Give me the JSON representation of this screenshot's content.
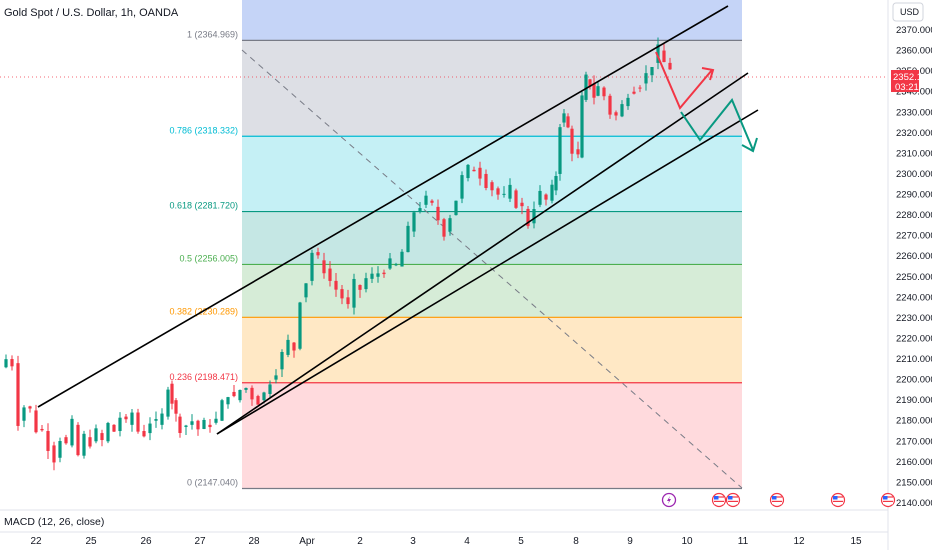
{
  "header": {
    "title": "Gold Spot / U.S. Dollar, 1h, OANDA"
  },
  "currency": "USD",
  "indicator_label": "MACD (12, 26, close)",
  "current_price": {
    "value": "2352.185",
    "countdown": "03:21",
    "color": "#f23645"
  },
  "colors": {
    "bullish": "#089981",
    "bearish": "#f23645",
    "channel": "#000000",
    "arrow_up": "#f23645",
    "arrow_down": "#089981"
  },
  "chart_data": {
    "type": "candlestick",
    "title": "Gold Spot / U.S. Dollar, 1h, OANDA",
    "ylim": [
      2137,
      2382
    ],
    "y_ticks": [
      2370,
      2360,
      2350,
      2340,
      2330,
      2320,
      2310,
      2300,
      2290,
      2280,
      2270,
      2260,
      2250,
      2240,
      2230,
      2220,
      2210,
      2200,
      2190,
      2180,
      2170,
      2160,
      2150,
      2140
    ],
    "x_ticks": [
      "22",
      "25",
      "26",
      "27",
      "28",
      "Apr",
      "2",
      "3",
      "4",
      "5",
      "8",
      "9",
      "10",
      "11",
      "12",
      "15"
    ],
    "fibonacci": {
      "levels": [
        {
          "label": "1 (2364.969)",
          "price": 2364.969,
          "color": "#787b86",
          "fill": "#d1d4dc"
        },
        {
          "label": "0.786 (2318.332)",
          "price": 2318.332,
          "color": "#00bcd4",
          "fill": "#b2ebf2"
        },
        {
          "label": "0.618 (2281.720)",
          "price": 2281.72,
          "color": "#089981",
          "fill": "#b2dfdb"
        },
        {
          "label": "0.5 (2256.005)",
          "price": 2256.005,
          "color": "#4caf50",
          "fill": "#c8e6c9"
        },
        {
          "label": "0.382 (2230.289)",
          "price": 2230.289,
          "color": "#ff9800",
          "fill": "#ffe0b2"
        },
        {
          "label": "0.236 (2198.471)",
          "price": 2198.471,
          "color": "#f23645",
          "fill": "#ffcdd2"
        },
        {
          "label": "0 (2147.040)",
          "price": 2147.04,
          "color": "#787b86",
          "fill": "#ffcdd2"
        }
      ],
      "top_zone_fill": "#c5d4f7"
    },
    "price_path": [
      [
        0,
        2206
      ],
      [
        6,
        2210
      ],
      [
        12,
        2208
      ],
      [
        18,
        2180
      ],
      [
        24,
        2187
      ],
      [
        30,
        2185
      ],
      [
        36,
        2176
      ],
      [
        42,
        2175
      ],
      [
        48,
        2168
      ],
      [
        54,
        2162
      ],
      [
        60,
        2172
      ],
      [
        66,
        2168
      ],
      [
        72,
        2178
      ],
      [
        78,
        2163
      ],
      [
        84,
        2172
      ],
      [
        90,
        2170
      ],
      [
        96,
        2174
      ],
      [
        102,
        2170
      ],
      [
        108,
        2178
      ],
      [
        114,
        2175
      ],
      [
        120,
        2182
      ],
      [
        126,
        2178
      ],
      [
        132,
        2184
      ],
      [
        138,
        2175
      ],
      [
        144,
        2174
      ],
      [
        150,
        2180
      ],
      [
        156,
        2178
      ],
      [
        162,
        2182
      ],
      [
        168,
        2198
      ],
      [
        172,
        2190
      ],
      [
        176,
        2182
      ],
      [
        180,
        2177
      ],
      [
        186,
        2178
      ],
      [
        192,
        2180
      ],
      [
        198,
        2176
      ],
      [
        204,
        2178
      ],
      [
        210,
        2179
      ],
      [
        216,
        2180
      ],
      [
        222,
        2188
      ],
      [
        228,
        2194
      ],
      [
        234,
        2190
      ],
      [
        240,
        2195
      ],
      [
        246,
        2196
      ],
      [
        252,
        2192
      ],
      [
        258,
        2190
      ],
      [
        264,
        2193
      ],
      [
        270,
        2200
      ],
      [
        276,
        2205
      ],
      [
        282,
        2212
      ],
      [
        288,
        2218
      ],
      [
        294,
        2215
      ],
      [
        300,
        2240
      ],
      [
        306,
        2248
      ],
      [
        312,
        2262
      ],
      [
        318,
        2258
      ],
      [
        324,
        2254
      ],
      [
        330,
        2248
      ],
      [
        336,
        2244
      ],
      [
        342,
        2240
      ],
      [
        348,
        2235
      ],
      [
        354,
        2246
      ],
      [
        360,
        2244
      ],
      [
        366,
        2249
      ],
      [
        372,
        2250
      ],
      [
        378,
        2252
      ],
      [
        384,
        2254
      ],
      [
        390,
        2256
      ],
      [
        396,
        2255
      ],
      [
        402,
        2262
      ],
      [
        408,
        2272
      ],
      [
        414,
        2282
      ],
      [
        420,
        2285
      ],
      [
        426,
        2287
      ],
      [
        432,
        2284
      ],
      [
        438,
        2278
      ],
      [
        444,
        2272
      ],
      [
        450,
        2280
      ],
      [
        456,
        2288
      ],
      [
        462,
        2298
      ],
      [
        468,
        2302
      ],
      [
        474,
        2303
      ],
      [
        480,
        2300
      ],
      [
        486,
        2296
      ],
      [
        492,
        2293
      ],
      [
        498,
        2290
      ],
      [
        504,
        2288
      ],
      [
        510,
        2292
      ],
      [
        516,
        2286
      ],
      [
        522,
        2283
      ],
      [
        528,
        2276
      ],
      [
        534,
        2285
      ],
      [
        540,
        2290
      ],
      [
        546,
        2287
      ],
      [
        552,
        2292
      ],
      [
        556,
        2300
      ],
      [
        560,
        2325
      ],
      [
        564,
        2328
      ],
      [
        568,
        2322
      ],
      [
        572,
        2312
      ],
      [
        578,
        2308
      ],
      [
        582,
        2336
      ],
      [
        586,
        2346
      ],
      [
        590,
        2344
      ],
      [
        594,
        2338
      ],
      [
        598,
        2342
      ],
      [
        604,
        2338
      ],
      [
        610,
        2330
      ],
      [
        616,
        2328
      ],
      [
        622,
        2333
      ],
      [
        628,
        2340
      ],
      [
        634,
        2342
      ],
      [
        640,
        2344
      ],
      [
        646,
        2348
      ],
      [
        652,
        2354
      ],
      [
        658,
        2360
      ],
      [
        664,
        2354
      ],
      [
        670,
        2352
      ]
    ],
    "projection_arrows": [
      {
        "direction": "up",
        "points": [
          [
            2364,
            2
          ],
          [
            2336,
            18
          ],
          [
            2355,
            40
          ]
        ],
        "color": "#f23645"
      },
      {
        "direction": "down",
        "points": [
          [
            2330,
            10
          ],
          [
            2342,
            30
          ],
          [
            2320,
            45
          ],
          [
            2312,
            62
          ]
        ],
        "color": "#089981"
      }
    ],
    "event_icons": [
      "lightning",
      "us-flag",
      "us-flag",
      "us-flag",
      "us-flag",
      "us-flag"
    ]
  }
}
